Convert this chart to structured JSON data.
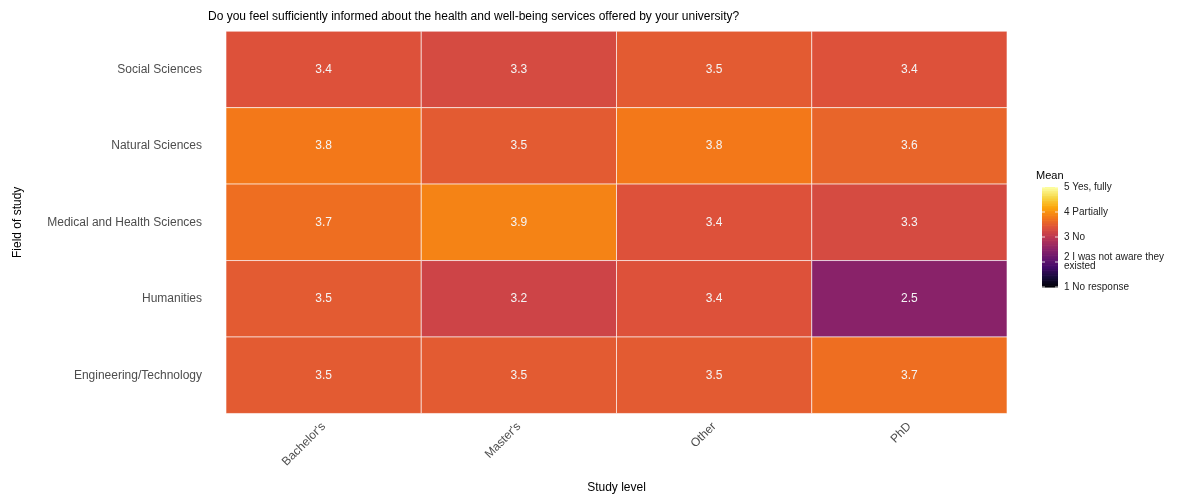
{
  "chart_data": {
    "type": "heatmap",
    "title": "Do you feel sufficiently informed about the health and well-being services offered by your university?",
    "xlabel": "Study level",
    "ylabel": "Field of study",
    "clabel": "Mean",
    "categories": [
      "Bachelor's",
      "Master's",
      "Other",
      "PhD"
    ],
    "y_categories": [
      "Social Sciences",
      "Natural Sciences",
      "Medical and Health Sciences",
      "Humanities",
      "Engineering/Technology"
    ],
    "cells": [
      [
        3.4,
        3.3,
        3.5,
        3.4
      ],
      [
        3.8,
        3.5,
        3.8,
        3.6
      ],
      [
        3.7,
        3.9,
        3.4,
        3.3
      ],
      [
        3.5,
        3.2,
        3.4,
        2.5
      ],
      [
        3.5,
        3.5,
        3.5,
        3.7
      ]
    ],
    "data_labels": true,
    "clim": [
      1,
      5
    ],
    "cticks": [
      {
        "value": 1,
        "label": "1 No response"
      },
      {
        "value": 2,
        "label": "2 I was not aware they existed"
      },
      {
        "value": 3,
        "label": "3 No"
      },
      {
        "value": 4,
        "label": "4 Partially"
      },
      {
        "value": 5,
        "label": "5 Yes, fully"
      }
    ],
    "grid": false
  }
}
